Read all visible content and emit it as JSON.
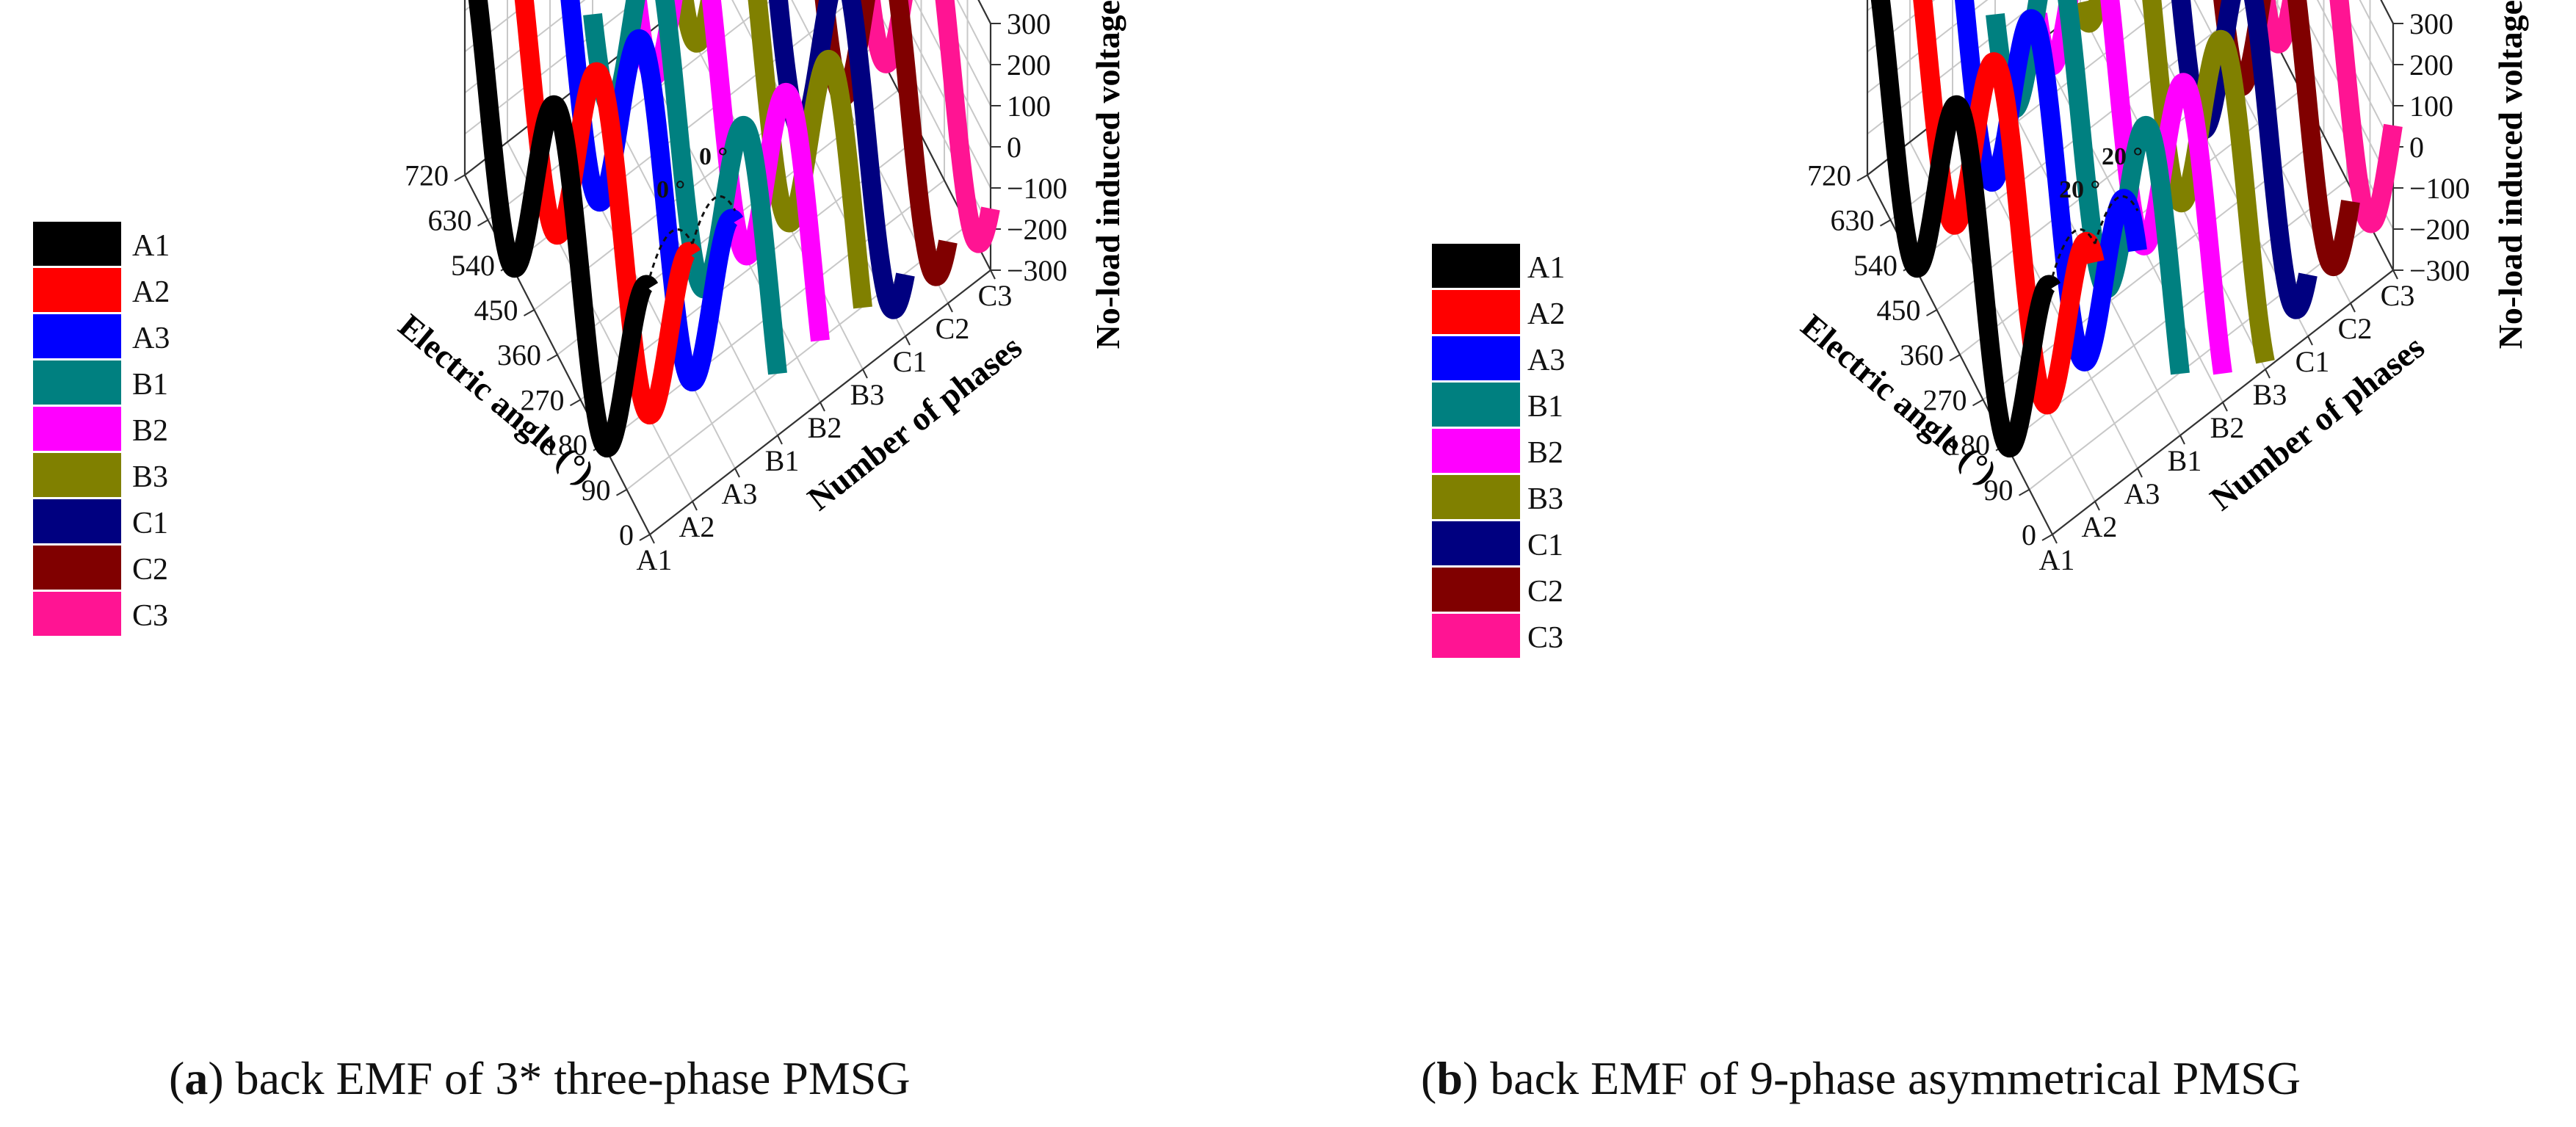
{
  "chart_data": [
    {
      "id": "a",
      "type": "line",
      "projection": "3d-waterfall",
      "caption_label": "a",
      "caption_text": "back EMF of 3* three-phase PMSG",
      "phase_shift_annotation": "0 °",
      "xlabel": "Electric angle (°)",
      "ylabel": "Number of phases",
      "zlabel": "No-load induced voltage (V)",
      "xlim": [
        0,
        720
      ],
      "zlim": [
        -300,
        300
      ],
      "x_ticks": [
        "0",
        "90",
        "180",
        "270",
        "360",
        "450",
        "540",
        "630",
        "720"
      ],
      "y_ticks": [
        "A1",
        "A2",
        "A3",
        "B1",
        "B2",
        "B3",
        "C1",
        "C2",
        "C3"
      ],
      "z_ticks": [
        "-300",
        "-200",
        "-100",
        "0",
        "100",
        "200",
        "300"
      ],
      "amplitude": 300,
      "series": [
        {
          "name": "A1",
          "color": "#000000",
          "phase_deg": 0
        },
        {
          "name": "A2",
          "color": "#ff0000",
          "phase_deg": 0
        },
        {
          "name": "A3",
          "color": "#0000ff",
          "phase_deg": 0
        },
        {
          "name": "B1",
          "color": "#008080",
          "phase_deg": 120
        },
        {
          "name": "B2",
          "color": "#ff00ff",
          "phase_deg": 120
        },
        {
          "name": "B3",
          "color": "#808000",
          "phase_deg": 120
        },
        {
          "name": "C1",
          "color": "#000080",
          "phase_deg": 240
        },
        {
          "name": "C2",
          "color": "#800000",
          "phase_deg": 240
        },
        {
          "name": "C3",
          "color": "#ff1493",
          "phase_deg": 240
        }
      ]
    },
    {
      "id": "b",
      "type": "line",
      "projection": "3d-waterfall",
      "caption_label": "b",
      "caption_text": "back EMF of 9-phase asymmetrical PMSG",
      "phase_shift_annotation": "20 °",
      "xlabel": "Electric angle (°)",
      "ylabel": "Number of phases",
      "zlabel": "No-load induced voltage (V)",
      "xlim": [
        0,
        720
      ],
      "zlim": [
        -300,
        300
      ],
      "x_ticks": [
        "0",
        "90",
        "180",
        "270",
        "360",
        "450",
        "540",
        "630",
        "720"
      ],
      "y_ticks": [
        "A1",
        "A2",
        "A3",
        "B1",
        "B2",
        "B3",
        "C1",
        "C2",
        "C3"
      ],
      "z_ticks": [
        "-300",
        "-200",
        "-100",
        "0",
        "100",
        "200",
        "300"
      ],
      "amplitude": 300,
      "series": [
        {
          "name": "A1",
          "color": "#000000",
          "phase_deg": 0
        },
        {
          "name": "A2",
          "color": "#ff0000",
          "phase_deg": 20
        },
        {
          "name": "A3",
          "color": "#0000ff",
          "phase_deg": 40
        },
        {
          "name": "B1",
          "color": "#008080",
          "phase_deg": 120
        },
        {
          "name": "B2",
          "color": "#ff00ff",
          "phase_deg": 140
        },
        {
          "name": "B3",
          "color": "#808000",
          "phase_deg": 160
        },
        {
          "name": "C1",
          "color": "#000080",
          "phase_deg": 240
        },
        {
          "name": "C2",
          "color": "#800000",
          "phase_deg": 260
        },
        {
          "name": "C3",
          "color": "#ff1493",
          "phase_deg": 280
        }
      ]
    }
  ]
}
